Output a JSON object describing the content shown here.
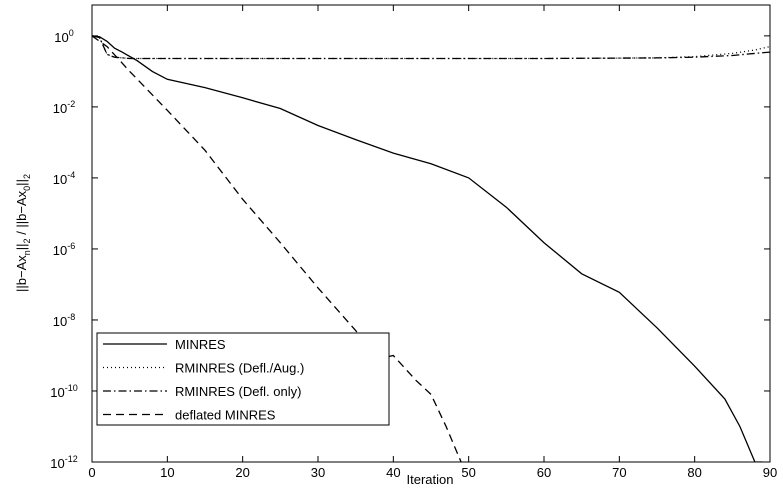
{
  "chart_data": {
    "type": "line",
    "xlabel": "Iteration",
    "ylabel": "||b−Ax_n||_2 / ||b−Ax_0||_2",
    "log_y": true,
    "legend": "lower left",
    "xlim": [
      0,
      90
    ],
    "xticks": [
      0,
      10,
      20,
      30,
      40,
      50,
      60,
      70,
      80,
      90
    ],
    "ylim": [
      1e-12,
      7.4
    ],
    "yticks": [
      {
        "value": 1e-12,
        "label": "10^-12"
      },
      {
        "value": 1e-10,
        "label": "10^-10"
      },
      {
        "value": 1e-08,
        "label": "10^-8"
      },
      {
        "value": 1e-06,
        "label": "10^-6"
      },
      {
        "value": 0.0001,
        "label": "10^-4"
      },
      {
        "value": 0.01,
        "label": "10^-2"
      },
      {
        "value": 1,
        "label": "10^0"
      }
    ],
    "series": [
      {
        "name": "MINRES",
        "color": "#000000",
        "style": "solid",
        "x": [
          0,
          1,
          2,
          3,
          4,
          6,
          8,
          10,
          15,
          20,
          25,
          30,
          35,
          40,
          45,
          50,
          55,
          60,
          65,
          70,
          75,
          80,
          84,
          86,
          88,
          89
        ],
        "values": [
          1,
          0.95,
          0.7,
          0.45,
          0.35,
          0.2,
          0.1,
          0.06,
          0.035,
          0.018,
          0.009,
          0.003,
          0.0012,
          0.0005,
          0.00025,
          0.0001,
          1.5e-05,
          1.5e-06,
          2e-07,
          6e-08,
          6e-09,
          5e-10,
          6e-11,
          1e-11,
          1e-12,
          1e-12
        ]
      },
      {
        "name": "RMINRES (Defl./Aug.)",
        "color": "#000000",
        "style": "dotted",
        "x": [
          0,
          1,
          2,
          3,
          5,
          20,
          40,
          60,
          75,
          80,
          85,
          88,
          90
        ],
        "values": [
          1,
          0.9,
          0.3,
          0.25,
          0.23,
          0.23,
          0.23,
          0.23,
          0.24,
          0.26,
          0.32,
          0.4,
          0.5
        ]
      },
      {
        "name": "RMINRES (Defl. only)",
        "color": "#000000",
        "style": "dashdot",
        "x": [
          0,
          1,
          2,
          3,
          5,
          20,
          40,
          60,
          75,
          80,
          85,
          88,
          90
        ],
        "values": [
          1,
          0.9,
          0.3,
          0.25,
          0.23,
          0.23,
          0.23,
          0.23,
          0.24,
          0.25,
          0.28,
          0.32,
          0.35
        ]
      },
      {
        "name": "deflated MINRES",
        "color": "#000000",
        "style": "dashed",
        "x": [
          0,
          2,
          5,
          10,
          15,
          20,
          25,
          30,
          35,
          38,
          40,
          43,
          45,
          47,
          49
        ],
        "values": [
          1,
          0.5,
          0.1,
          0.008,
          0.0006,
          2.5e-05,
          1.5e-06,
          8e-08,
          5e-09,
          8e-10,
          1e-09,
          2e-10,
          8e-11,
          1e-11,
          1e-12
        ]
      }
    ]
  }
}
